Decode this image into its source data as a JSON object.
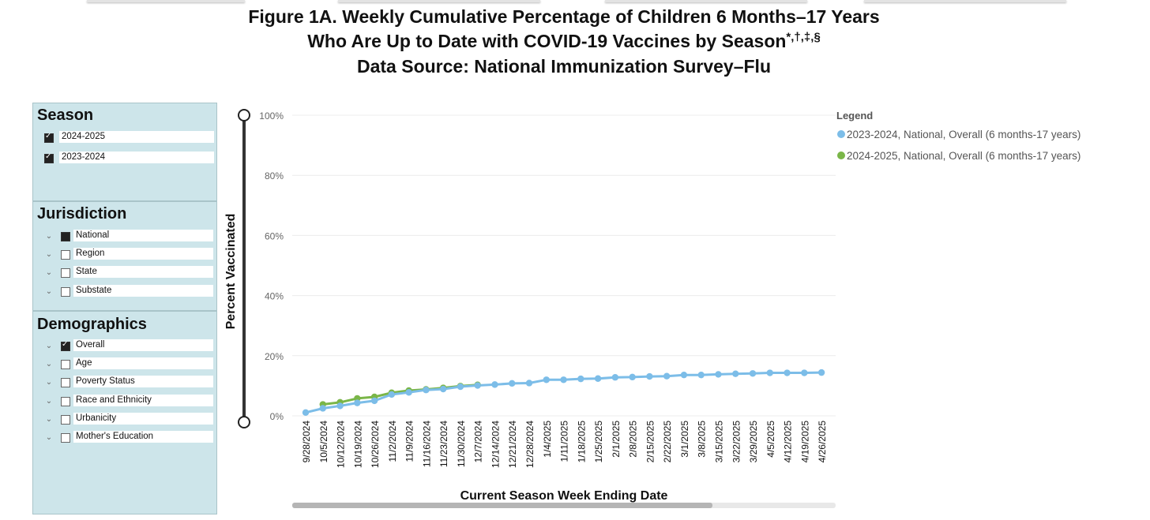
{
  "title": {
    "line1": "Figure 1A. Weekly Cumulative Percentage of Children 6 Months–17 Years",
    "line2": "Who Are Up to Date with COVID-19 Vaccines by Season",
    "line2_marks": "*,†,‡,§",
    "line3": "Data Source: National Immunization Survey–Flu"
  },
  "filters": {
    "season": {
      "title": "Season",
      "items": [
        {
          "label": "2024-2025",
          "state": "checked"
        },
        {
          "label": "2023-2024",
          "state": "checked"
        }
      ]
    },
    "jurisdiction": {
      "title": "Jurisdiction",
      "items": [
        {
          "label": "National",
          "state": "partial"
        },
        {
          "label": "Region",
          "state": "empty"
        },
        {
          "label": "State",
          "state": "empty"
        },
        {
          "label": "Substate",
          "state": "empty"
        }
      ]
    },
    "demographics": {
      "title": "Demographics",
      "items": [
        {
          "label": "Overall",
          "state": "checked"
        },
        {
          "label": "Age",
          "state": "empty"
        },
        {
          "label": "Poverty Status",
          "state": "empty"
        },
        {
          "label": "Race and Ethnicity",
          "state": "empty"
        },
        {
          "label": "Urbanicity",
          "state": "empty"
        },
        {
          "label": "Mother's Education",
          "state": "empty"
        }
      ]
    }
  },
  "chart_data": {
    "type": "line",
    "xlabel": "Current Season Week Ending Date",
    "ylabel": "Percent Vaccinated",
    "ylim": [
      0,
      100
    ],
    "y_ticks": [
      "0%",
      "20%",
      "40%",
      "60%",
      "80%",
      "100%"
    ],
    "grid": true,
    "legend_title": "Legend",
    "legend_position": "top-right",
    "categories": [
      "9/28/2024",
      "10/5/2024",
      "10/12/2024",
      "10/19/2024",
      "10/26/2024",
      "11/2/2024",
      "11/9/2024",
      "11/16/2024",
      "11/23/2024",
      "11/30/2024",
      "12/7/2024",
      "12/14/2024",
      "12/21/2024",
      "12/28/2024",
      "1/4/2025",
      "1/11/2025",
      "1/18/2025",
      "1/25/2025",
      "2/1/2025",
      "2/8/2025",
      "2/15/2025",
      "2/22/2025",
      "3/1/2025",
      "3/8/2025",
      "3/15/2025",
      "3/22/2025",
      "3/29/2025",
      "4/5/2025",
      "4/12/2025",
      "4/19/2025",
      "4/26/2025"
    ],
    "series": [
      {
        "name": "2024-2025, National, Overall (6 months-17 years)",
        "color": "#7ab648",
        "values": [
          null,
          3.8,
          4.5,
          5.8,
          6.3,
          7.7,
          8.4,
          8.8,
          9.3,
          9.9,
          10.3,
          null,
          null,
          null,
          null,
          null,
          null,
          null,
          null,
          null,
          null,
          null,
          null,
          null,
          null,
          null,
          null,
          null,
          null,
          null,
          null
        ]
      },
      {
        "name": "2023-2024, National, Overall (6 months-17 years)",
        "color": "#7cbde8",
        "values": [
          1.1,
          2.5,
          3.3,
          4.3,
          5.0,
          7.1,
          7.8,
          8.6,
          8.9,
          9.7,
          10.1,
          10.4,
          10.8,
          10.9,
          12.0,
          12.0,
          12.3,
          12.4,
          12.8,
          12.9,
          13.1,
          13.2,
          13.6,
          13.6,
          13.8,
          14.0,
          14.1,
          14.3,
          14.3,
          14.3,
          14.4
        ]
      }
    ],
    "legend_order": [
      1,
      0
    ]
  }
}
